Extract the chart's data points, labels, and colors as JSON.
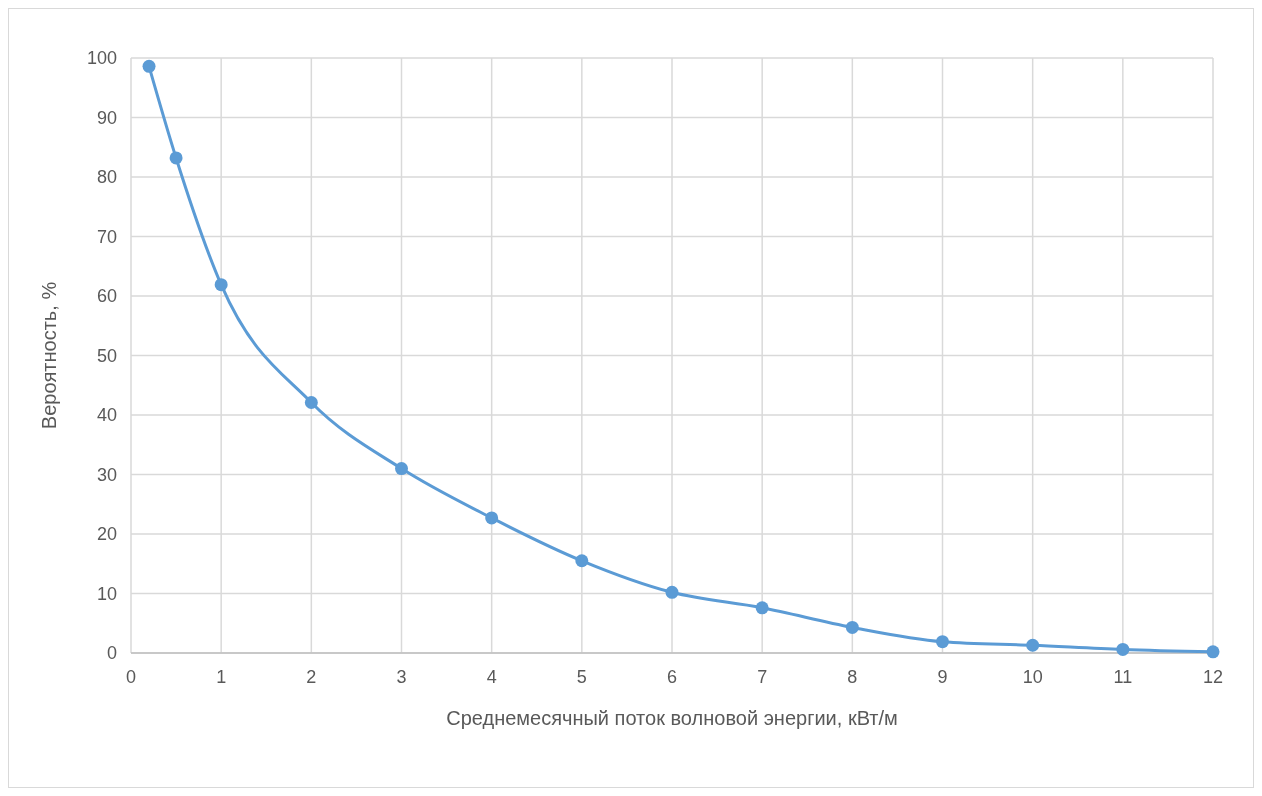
{
  "chart_data": {
    "type": "line",
    "xlabel": "Среднемесячный поток волновой энергии, кВт/м",
    "ylabel": "Вероятность, %",
    "x": [
      0.2,
      0.5,
      1,
      2,
      3,
      4,
      5,
      6,
      7,
      8,
      9,
      10,
      11,
      12
    ],
    "series": [
      {
        "color": "#5b9bd5",
        "values": [
          98.6,
          83.2,
          61.9,
          42.1,
          31.0,
          22.7,
          15.5,
          10.2,
          7.6,
          4.3,
          1.9,
          1.3,
          0.6,
          0.2
        ]
      }
    ],
    "xlim": [
      0,
      12
    ],
    "xticks": [
      0,
      1,
      2,
      3,
      4,
      5,
      6,
      7,
      8,
      9,
      10,
      11,
      12
    ],
    "ylim": [
      0,
      100
    ],
    "yticks": [
      0,
      10,
      20,
      30,
      40,
      50,
      60,
      70,
      80,
      90,
      100
    ],
    "grid": true,
    "marker": "circle",
    "line_style": "solid"
  }
}
